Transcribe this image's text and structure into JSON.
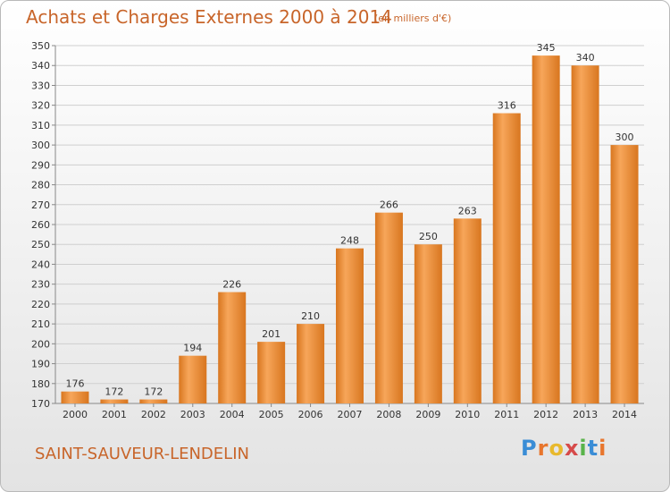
{
  "header": {
    "title": "Achats et Charges Externes 2000 à 2014",
    "subtitle": "(en milliers d'€)"
  },
  "footer": {
    "commune": "SAINT-SAUVEUR-LENDELIN",
    "logo_text": "Proxiti"
  },
  "colors": {
    "bar_light": "#f7a65a",
    "bar_dark": "#d8761f",
    "text_accent": "#c8652a"
  },
  "chart_data": {
    "type": "bar",
    "categories": [
      "2000",
      "2001",
      "2002",
      "2003",
      "2004",
      "2005",
      "2006",
      "2007",
      "2008",
      "2009",
      "2010",
      "2011",
      "2012",
      "2013",
      "2014"
    ],
    "values": [
      176,
      172,
      172,
      194,
      226,
      201,
      210,
      248,
      266,
      250,
      263,
      316,
      345,
      340,
      300
    ],
    "ylim": [
      170,
      350
    ],
    "yticks": [
      170,
      180,
      190,
      200,
      210,
      220,
      230,
      240,
      250,
      260,
      270,
      280,
      290,
      300,
      310,
      320,
      330,
      340,
      350
    ],
    "grid": true,
    "title": "Achats et Charges Externes 2000 à 2014",
    "xlabel": "",
    "ylabel": ""
  }
}
